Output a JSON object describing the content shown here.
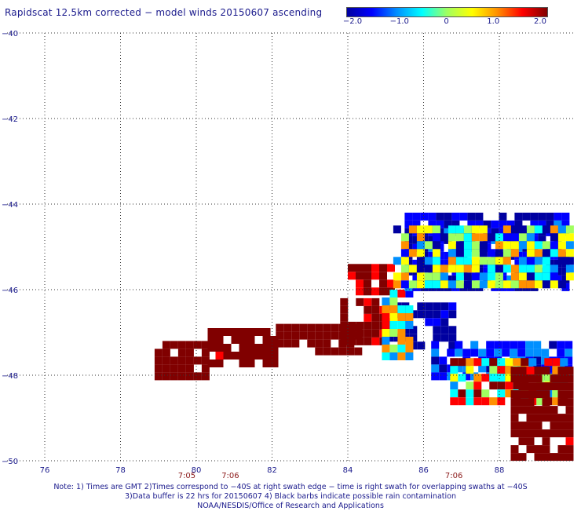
{
  "chart_data": {
    "type": "heatmap",
    "title": "Rapidscat 12.5km corrected − model winds 20150607 ascending",
    "colorbar": {
      "min": -2.0,
      "max": 2.0,
      "ticks": [
        "−2.0",
        "−1.0",
        "0",
        "1.0",
        "2.0"
      ],
      "tick_values": [
        -2.0,
        -1.0,
        0,
        1.0,
        2.0
      ],
      "colors": [
        "#0000a0",
        "#0000ff",
        "#0090ff",
        "#00ffff",
        "#a0ff60",
        "#ffff00",
        "#ff9000",
        "#ff0000",
        "#800000"
      ]
    },
    "xlim": [
      75,
      90
    ],
    "ylim": [
      -50,
      -40
    ],
    "x_ticks": [
      "76",
      "78",
      "80",
      "82",
      "84",
      "86",
      "88"
    ],
    "x_tick_values": [
      76,
      78,
      80,
      82,
      84,
      86,
      88
    ],
    "y_ticks": [
      "−40",
      "−42",
      "−44",
      "−46",
      "−48",
      "−50"
    ],
    "y_tick_values": [
      -40,
      -42,
      -44,
      -46,
      -48,
      -50
    ],
    "grid": true,
    "time_labels": [
      {
        "text": "7:05",
        "x": 79.75
      },
      {
        "text": "7:06",
        "x": 80.9
      },
      {
        "text": "7:06",
        "x": 86.8
      }
    ],
    "clusters": [
      {
        "name": "tail",
        "x": [
          78.9,
          80.2
        ],
        "y": [
          -48.1,
          -47.2
        ],
        "value": 2.0
      },
      {
        "name": "tail",
        "x": [
          80.3,
          82.1
        ],
        "y": [
          -47.8,
          -46.9
        ],
        "value": 2.0
      },
      {
        "name": "tail",
        "x": [
          82.1,
          84.2
        ],
        "y": [
          -47.5,
          -46.8
        ],
        "value": 2.0
      },
      {
        "name": "red-core",
        "x": [
          83.8,
          85.0
        ],
        "y": [
          -47.3,
          -46.2
        ],
        "value": 1.8
      },
      {
        "name": "upper-red",
        "x": [
          84.0,
          85.2
        ],
        "y": [
          -46.1,
          -45.4
        ],
        "value": 1.7
      },
      {
        "name": "blue-band",
        "x": [
          85.0,
          86.8
        ],
        "y": [
          -47.3,
          -46.3
        ],
        "value": -1.9
      },
      {
        "name": "transition",
        "x": [
          84.9,
          85.6
        ],
        "y": [
          -47.5,
          -46.0
        ],
        "value": 0.0
      },
      {
        "name": "upper-swath",
        "x": [
          85.5,
          89.8
        ],
        "y": [
          -46.0,
          -44.2
        ],
        "value": -1.5
      },
      {
        "name": "cyan-edge",
        "x": [
          85.2,
          89.8
        ],
        "y": [
          -45.8,
          -44.5
        ],
        "value": -0.4
      },
      {
        "name": "lower-blue",
        "x": [
          86.2,
          89.8
        ],
        "y": [
          -48.0,
          -47.2
        ],
        "value": -1.2
      },
      {
        "name": "lower-mixed",
        "x": [
          86.7,
          89.8
        ],
        "y": [
          -48.6,
          -47.6
        ],
        "value": 0.6
      },
      {
        "name": "lower-red",
        "x": [
          88.3,
          89.8
        ],
        "y": [
          -50.0,
          -47.8
        ],
        "value": 2.0
      }
    ]
  },
  "notes": {
    "line1": "Note: 1) Times are GMT 2)Times correspond to −40S at right swath edge − time is right swath for overlapping swaths at −40S",
    "line2": "3)Data buffer is 22 hrs for 20150607 4) Black barbs indicate possible rain contamination",
    "line3": "NOAA/NESDIS/Office of Research and Applications"
  }
}
